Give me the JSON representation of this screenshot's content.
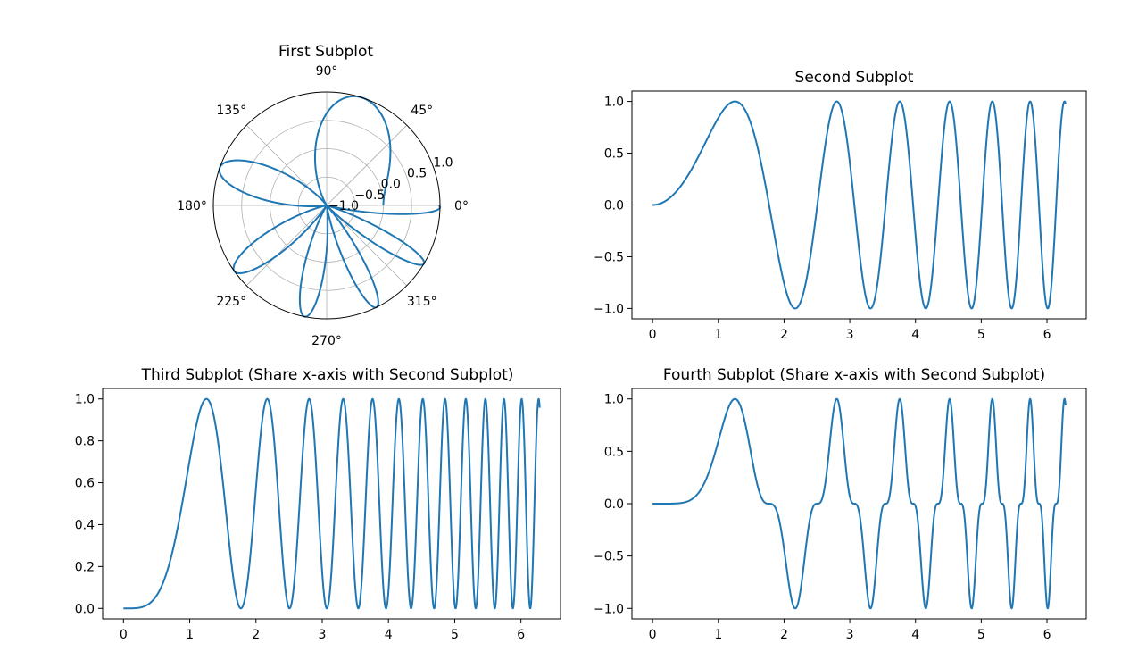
{
  "chart_data": [
    {
      "type": "line",
      "projection": "polar",
      "title": "First Subplot",
      "function": "r = sin(theta^2)",
      "theta_range": [
        0,
        6.283
      ],
      "rlim": [
        -1.0,
        1.0
      ],
      "r_ticks": [
        -1.0,
        -0.5,
        0.0,
        0.5,
        1.0
      ],
      "r_tick_labels": [
        "−1.0",
        "−0.5",
        "0.0",
        "0.5",
        "1.0"
      ],
      "theta_ticks": [
        0,
        45,
        90,
        135,
        180,
        225,
        270,
        315
      ],
      "theta_tick_labels": [
        "0°",
        "45°",
        "90°",
        "135°",
        "180°",
        "225°",
        "270°",
        "315°"
      ],
      "grid": true,
      "color": "#1f77b4"
    },
    {
      "type": "line",
      "title": "Second Subplot",
      "function": "y = sin(x^2)",
      "x_range": [
        0,
        6.283
      ],
      "xlim": [
        -0.314,
        6.597
      ],
      "ylim": [
        -1.1,
        1.1
      ],
      "x_ticks": [
        0,
        1,
        2,
        3,
        4,
        5,
        6
      ],
      "x_tick_labels": [
        "0",
        "1",
        "2",
        "3",
        "4",
        "5",
        "6"
      ],
      "y_ticks": [
        -1.0,
        -0.5,
        0.0,
        0.5,
        1.0
      ],
      "y_tick_labels": [
        "−1.0",
        "−0.5",
        "0.0",
        "0.5",
        "1.0"
      ],
      "grid": false,
      "color": "#1f77b4"
    },
    {
      "type": "line",
      "title": "Third Subplot (Share x-axis with Second Subplot)",
      "function": "y = sin(x^2)^2",
      "x_range": [
        0,
        6.283
      ],
      "xlim": [
        -0.314,
        6.597
      ],
      "ylim": [
        -0.05,
        1.05
      ],
      "x_ticks": [
        0,
        1,
        2,
        3,
        4,
        5,
        6
      ],
      "x_tick_labels": [
        "0",
        "1",
        "2",
        "3",
        "4",
        "5",
        "6"
      ],
      "y_ticks": [
        0.0,
        0.2,
        0.4,
        0.6,
        0.8,
        1.0
      ],
      "y_tick_labels": [
        "0.0",
        "0.2",
        "0.4",
        "0.6",
        "0.8",
        "1.0"
      ],
      "grid": false,
      "color": "#1f77b4"
    },
    {
      "type": "line",
      "title": "Fourth Subplot (Share x-axis with Second Subplot)",
      "function": "y = sin(x^2)^3",
      "x_range": [
        0,
        6.283
      ],
      "xlim": [
        -0.314,
        6.597
      ],
      "ylim": [
        -1.1,
        1.1
      ],
      "x_ticks": [
        0,
        1,
        2,
        3,
        4,
        5,
        6
      ],
      "x_tick_labels": [
        "0",
        "1",
        "2",
        "3",
        "4",
        "5",
        "6"
      ],
      "y_ticks": [
        -1.0,
        -0.5,
        0.0,
        0.5,
        1.0
      ],
      "y_tick_labels": [
        "−1.0",
        "−0.5",
        "0.0",
        "0.5",
        "1.0"
      ],
      "grid": false,
      "color": "#1f77b4"
    }
  ]
}
